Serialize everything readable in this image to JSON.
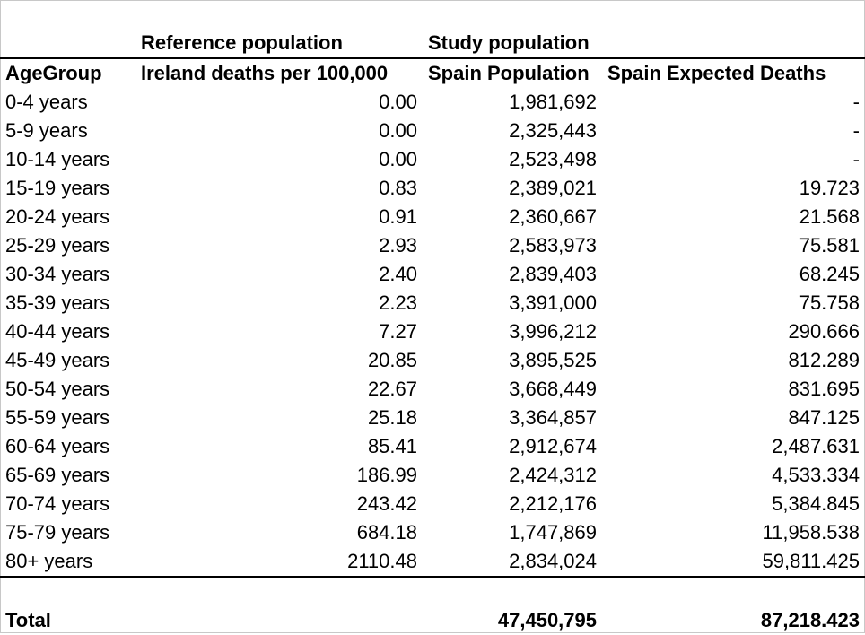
{
  "group_headers": {
    "reference": "Reference population",
    "study": "Study population"
  },
  "columns": {
    "age_group": "AgeGroup",
    "ireland_deaths": "Ireland deaths per 100,000",
    "spain_population": "Spain Population",
    "spain_expected": "Spain Expected Deaths"
  },
  "rows": [
    {
      "age": "0-4 years",
      "rate": "0.00",
      "pop": "1,981,692",
      "expected": "-"
    },
    {
      "age": "5-9 years",
      "rate": "0.00",
      "pop": "2,325,443",
      "expected": "-"
    },
    {
      "age": "10-14 years",
      "rate": "0.00",
      "pop": "2,523,498",
      "expected": "-"
    },
    {
      "age": "15-19 years",
      "rate": "0.83",
      "pop": "2,389,021",
      "expected": "19.723"
    },
    {
      "age": "20-24 years",
      "rate": "0.91",
      "pop": "2,360,667",
      "expected": "21.568"
    },
    {
      "age": "25-29 years",
      "rate": "2.93",
      "pop": "2,583,973",
      "expected": "75.581"
    },
    {
      "age": "30-34 years",
      "rate": "2.40",
      "pop": "2,839,403",
      "expected": "68.245"
    },
    {
      "age": "35-39 years",
      "rate": "2.23",
      "pop": "3,391,000",
      "expected": "75.758"
    },
    {
      "age": "40-44 years",
      "rate": "7.27",
      "pop": "3,996,212",
      "expected": "290.666"
    },
    {
      "age": "45-49 years",
      "rate": "20.85",
      "pop": "3,895,525",
      "expected": "812.289"
    },
    {
      "age": "50-54 years",
      "rate": "22.67",
      "pop": "3,668,449",
      "expected": "831.695"
    },
    {
      "age": "55-59 years",
      "rate": "25.18",
      "pop": "3,364,857",
      "expected": "847.125"
    },
    {
      "age": "60-64 years",
      "rate": "85.41",
      "pop": "2,912,674",
      "expected": "2,487.631"
    },
    {
      "age": "65-69 years",
      "rate": "186.99",
      "pop": "2,424,312",
      "expected": "4,533.334"
    },
    {
      "age": "70-74 years",
      "rate": "243.42",
      "pop": "2,212,176",
      "expected": "5,384.845"
    },
    {
      "age": "75-79 years",
      "rate": "684.18",
      "pop": "1,747,869",
      "expected": "11,958.538"
    },
    {
      "age": "80+ years",
      "rate": "2110.48",
      "pop": "2,834,024",
      "expected": "59,811.425"
    }
  ],
  "total": {
    "label": "Total",
    "pop": "47,450,795",
    "expected": "87,218.423"
  }
}
